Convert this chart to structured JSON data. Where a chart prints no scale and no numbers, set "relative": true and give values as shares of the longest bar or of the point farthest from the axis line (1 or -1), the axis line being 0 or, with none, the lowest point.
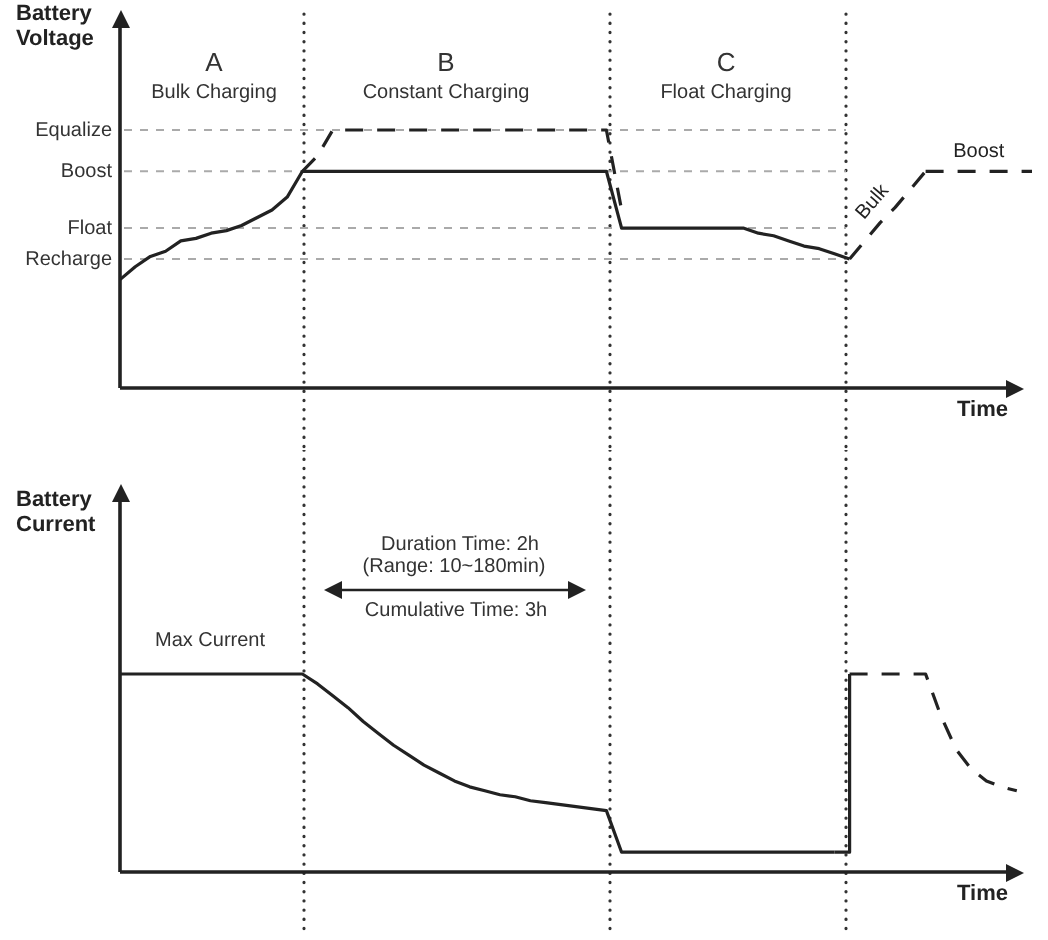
{
  "chart_data": [
    {
      "type": "line",
      "ylabel": "Battery Voltage",
      "xlabel": "Time",
      "relative": true,
      "marker": "none",
      "grid": "x",
      "categories": [
        null,
        null,
        null,
        null,
        null,
        null,
        null,
        null,
        null,
        null,
        null,
        null,
        null,
        null,
        null,
        null,
        null,
        null,
        null,
        null,
        null,
        null,
        null,
        null,
        null,
        null,
        null,
        null,
        null,
        null,
        null,
        null,
        null,
        null,
        null,
        null,
        null,
        null,
        null,
        null,
        null,
        null,
        null,
        null,
        null,
        null,
        null,
        null,
        null,
        null,
        null,
        null,
        null,
        null,
        null,
        null,
        null,
        null,
        null,
        null,
        null
      ],
      "series": [
        {
          "color": "#222222",
          "line_style": "solid",
          "values": [
            0.42,
            0.47,
            0.51,
            0.53,
            0.57,
            0.58,
            0.6,
            0.61,
            0.63,
            0.66,
            0.69,
            0.74,
            0.84,
            0.84,
            0.84,
            0.84,
            0.84,
            0.84,
            0.84,
            0.84,
            0.84,
            0.84,
            0.84,
            0.84,
            0.84,
            0.84,
            0.84,
            0.84,
            0.84,
            0.84,
            0.84,
            0.84,
            0.84,
            0.62,
            0.62,
            0.62,
            0.62,
            0.62,
            0.62,
            0.62,
            0.62,
            0.62,
            0.6,
            0.59,
            0.57,
            0.55,
            0.54,
            0.52,
            0.5,
            null,
            null,
            null,
            null,
            null,
            null,
            null,
            null,
            null,
            null,
            null,
            null
          ]
        },
        {
          "color": "#222222",
          "line_style": "dashed",
          "values": [
            null,
            null,
            null,
            null,
            null,
            null,
            null,
            null,
            null,
            null,
            null,
            null,
            0.84,
            0.9,
            1,
            1,
            1,
            1,
            1,
            1,
            1,
            1,
            1,
            1,
            1,
            1,
            1,
            1,
            1,
            1,
            1,
            1,
            1,
            0.69,
            null,
            null,
            null,
            null,
            null,
            null,
            null,
            null,
            null,
            null,
            null,
            null,
            null,
            null,
            null,
            null,
            null,
            null,
            null,
            null,
            null,
            null,
            null,
            null,
            null,
            null,
            null
          ]
        },
        {
          "name": "Bulk",
          "color": "#222222",
          "line_style": "dashed",
          "values": [
            null,
            null,
            null,
            null,
            null,
            null,
            null,
            null,
            null,
            null,
            null,
            null,
            null,
            null,
            null,
            null,
            null,
            null,
            null,
            null,
            null,
            null,
            null,
            null,
            null,
            null,
            null,
            null,
            null,
            null,
            null,
            null,
            null,
            null,
            null,
            null,
            null,
            null,
            null,
            null,
            null,
            null,
            null,
            null,
            null,
            null,
            null,
            null,
            0.5,
            0.57,
            0.64,
            0.7,
            0.77,
            0.84,
            null,
            null,
            null,
            null,
            null,
            null,
            null
          ]
        },
        {
          "name": "Boost",
          "color": "#222222",
          "line_style": "dashed",
          "values": [
            null,
            null,
            null,
            null,
            null,
            null,
            null,
            null,
            null,
            null,
            null,
            null,
            null,
            null,
            null,
            null,
            null,
            null,
            null,
            null,
            null,
            null,
            null,
            null,
            null,
            null,
            null,
            null,
            null,
            null,
            null,
            null,
            null,
            null,
            null,
            null,
            null,
            null,
            null,
            null,
            null,
            null,
            null,
            null,
            null,
            null,
            null,
            null,
            null,
            null,
            null,
            null,
            null,
            0.84,
            0.84,
            0.84,
            0.84,
            0.84,
            0.84,
            0.84,
            0.84
          ]
        }
      ],
      "ref_lines": [
        {
          "axis": "y",
          "value": 1,
          "label": "Equalize",
          "color": "#aaaaaa",
          "line_style": "dashed"
        },
        {
          "axis": "y",
          "value": 0.84,
          "label": "Boost",
          "color": "#aaaaaa",
          "line_style": "dashed"
        },
        {
          "axis": "y",
          "value": 0.62,
          "label": "Float",
          "color": "#aaaaaa",
          "line_style": "dashed"
        },
        {
          "axis": "y",
          "value": 0.5,
          "label": "Recharge",
          "color": "#aaaaaa",
          "line_style": "dashed"
        }
      ],
      "annotations": [
        "A",
        "Bulk Charging",
        "B",
        "Constant Charging",
        "C",
        "Float Charging"
      ]
    },
    {
      "type": "line",
      "ylabel": "Battery Current",
      "xlabel": "Time",
      "relative": true,
      "marker": "none",
      "grid": "x",
      "categories": [
        null,
        null,
        null,
        null,
        null,
        null,
        null,
        null,
        null,
        null,
        null,
        null,
        null,
        null,
        null,
        null,
        null,
        null,
        null,
        null,
        null,
        null,
        null,
        null,
        null,
        null,
        null,
        null,
        null,
        null,
        null,
        null,
        null,
        null,
        null,
        null,
        null,
        null,
        null,
        null,
        null,
        null,
        null,
        null,
        null,
        null,
        null,
        null,
        null,
        null,
        null,
        null,
        null,
        null,
        null,
        null,
        null,
        null,
        null,
        null,
        null
      ],
      "series": [
        {
          "color": "#222222",
          "line_style": "solid",
          "values": [
            1,
            1,
            1,
            1,
            1,
            1,
            1,
            1,
            1,
            1,
            1,
            1,
            1,
            0.95,
            0.89,
            0.83,
            0.76,
            0.7,
            0.64,
            0.59,
            0.54,
            0.5,
            0.46,
            0.43,
            0.41,
            0.39,
            0.38,
            0.36,
            0.35,
            0.34,
            0.33,
            0.32,
            0.31,
            0.1,
            0.1,
            0.1,
            0.1,
            0.1,
            0.1,
            0.1,
            0.1,
            0.1,
            0.1,
            0.1,
            0.1,
            0.1,
            0.1,
            0.1,
            null,
            null,
            null,
            null,
            null,
            null,
            null,
            null,
            null,
            null,
            null,
            null,
            null
          ]
        },
        {
          "type": "step",
          "color": "#222222",
          "line_style": "solid",
          "values": [
            null,
            null,
            null,
            null,
            null,
            null,
            null,
            null,
            null,
            null,
            null,
            null,
            null,
            null,
            null,
            null,
            null,
            null,
            null,
            null,
            null,
            null,
            null,
            null,
            null,
            null,
            null,
            null,
            null,
            null,
            null,
            null,
            null,
            null,
            null,
            null,
            null,
            null,
            null,
            null,
            null,
            null,
            null,
            null,
            null,
            null,
            null,
            0.1,
            1,
            null,
            null,
            null,
            null,
            null,
            null,
            null,
            null,
            null,
            null,
            null,
            null
          ]
        },
        {
          "color": "#222222",
          "line_style": "dashed",
          "values": [
            null,
            null,
            null,
            null,
            null,
            null,
            null,
            null,
            null,
            null,
            null,
            null,
            null,
            null,
            null,
            null,
            null,
            null,
            null,
            null,
            null,
            null,
            null,
            null,
            null,
            null,
            null,
            null,
            null,
            null,
            null,
            null,
            null,
            null,
            null,
            null,
            null,
            null,
            null,
            null,
            null,
            null,
            null,
            null,
            null,
            null,
            null,
            null,
            1,
            1,
            1,
            1,
            1,
            1,
            0.79,
            0.62,
            0.52,
            0.46,
            0.43,
            0.41,
            null
          ]
        }
      ],
      "annotations": [
        "Max Current",
        "Duration Time: 2h",
        "(Range: 10~180min)",
        "Cumulative Time: 3h"
      ]
    }
  ]
}
